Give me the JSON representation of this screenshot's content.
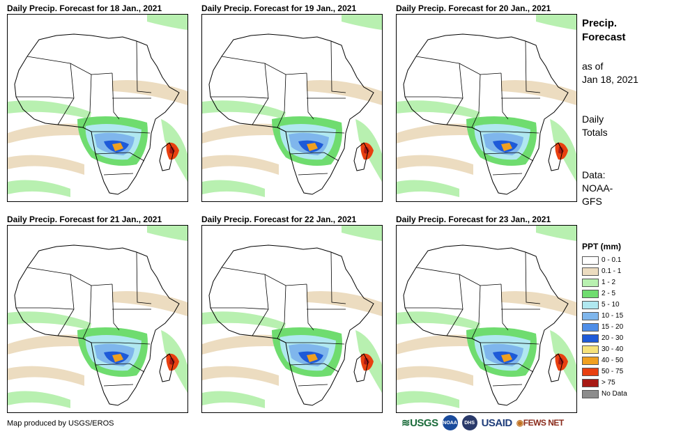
{
  "panels": [
    {
      "title": "Daily Precip. Forecast for 18 Jan., 2021",
      "dominant_category": "10 - 15"
    },
    {
      "title": "Daily Precip. Forecast for 19 Jan., 2021",
      "dominant_category": "10 - 15"
    },
    {
      "title": "Daily Precip. Forecast for 20 Jan., 2021",
      "dominant_category": "10 - 15"
    },
    {
      "title": "Daily Precip. Forecast for 21 Jan., 2021",
      "dominant_category": "10 - 15"
    },
    {
      "title": "Daily Precip. Forecast for 22 Jan., 2021",
      "dominant_category": "10 - 15"
    },
    {
      "title": "Daily Precip. Forecast for 23 Jan., 2021",
      "dominant_category": "10 - 15"
    }
  ],
  "side": {
    "title_line1": "Precip.",
    "title_line2": "Forecast",
    "as_of_line1": "as of",
    "as_of_line2": "Jan 18, 2021",
    "totals_line1": "Daily",
    "totals_line2": "Totals",
    "data_line1": "Data:",
    "data_line2": "NOAA-",
    "data_line3": "GFS"
  },
  "legend": {
    "title": "PPT (mm)",
    "items": [
      {
        "label": "0 - 0.1",
        "color": "#ffffff"
      },
      {
        "label": "0.1 - 1",
        "color": "#ecdcc0"
      },
      {
        "label": "1 - 2",
        "color": "#b8f0b0"
      },
      {
        "label": "2 - 5",
        "color": "#6fdc6f"
      },
      {
        "label": "5 - 10",
        "color": "#b0e8f0"
      },
      {
        "label": "10 - 15",
        "color": "#7fb6ec"
      },
      {
        "label": "15 - 20",
        "color": "#4e8ee8"
      },
      {
        "label": "20 - 30",
        "color": "#1e5ad8"
      },
      {
        "label": "30 - 40",
        "color": "#f6e27a"
      },
      {
        "label": "40 - 50",
        "color": "#f0a020"
      },
      {
        "label": "50 - 75",
        "color": "#e84010"
      },
      {
        "label": "> 75",
        "color": "#a81a14"
      },
      {
        "label": "No Data",
        "color": "#8c8c8c"
      }
    ]
  },
  "footer": {
    "credit": "Map produced by USGS/EROS",
    "logos": {
      "usgs": "USGS",
      "noaa": "NOAA",
      "dhs": "DHS",
      "usaid": "USAID",
      "fewsnet": "FEWS NET"
    }
  }
}
